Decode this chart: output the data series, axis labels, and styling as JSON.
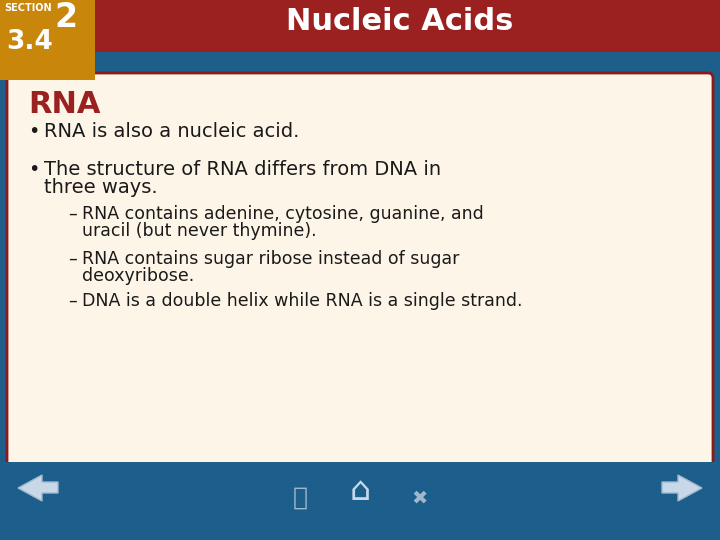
{
  "title": "Nucleic Acids",
  "section_label": "SECTION",
  "section_number": "2",
  "section_sub": "3.4",
  "header_bg": "#9B2020",
  "header_text_color": "#FFFFFF",
  "section_box_color": "#C8860A",
  "slide_bg": "#1D5E8A",
  "content_bg": "#FDF6E8",
  "content_border": "#8B1A1A",
  "rna_heading": "RNA",
  "rna_heading_color": "#9B2020",
  "bullet1": "RNA is also a nucleic acid.",
  "bullet2_line1": "The structure of RNA differs from DNA in",
  "bullet2_line2": "three ways.",
  "sub1_line1": "RNA contains adenine, cytosine, guanine, and",
  "sub1_line2": "uracil (but never thymine).",
  "sub2_line1": "RNA contains sugar ribose instead of sugar",
  "sub2_line2": "deoxyribose.",
  "sub3": "DNA is a double helix while RNA is a single strand.",
  "footer_bg": "#1D5E8A",
  "title_fontsize": 22,
  "heading_fontsize": 22,
  "body_fontsize": 14,
  "sub_fontsize": 12.5
}
